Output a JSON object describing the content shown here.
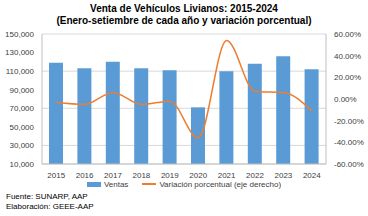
{
  "chart_data": {
    "type": "bar",
    "title": "Venta de Vehículos Livianos: 2015-2024",
    "subtitle": "(Enero-setiembre de cada año y variación porcentual)",
    "categories": [
      "2015",
      "2016",
      "2017",
      "2018",
      "2019",
      "2020",
      "2021",
      "2022",
      "2023",
      "2024"
    ],
    "series": [
      {
        "name": "Ventas",
        "type": "bar",
        "color": "#5b9bd5",
        "values": [
          119000,
          113000,
          120000,
          113000,
          111000,
          71000,
          110000,
          118000,
          126000,
          112000
        ]
      },
      {
        "name": "Variación porcentual (eje derecho)",
        "type": "line",
        "color": "#ed7d31",
        "axis": "y2",
        "values": [
          -3,
          -5,
          6,
          -5,
          -2,
          -36,
          54,
          7,
          6,
          -11
        ]
      }
    ],
    "ylim": [
      10000,
      150000
    ],
    "yticks": [
      {
        "value": 10000,
        "label": "10,000"
      },
      {
        "value": 30000,
        "label": "30,000"
      },
      {
        "value": 50000,
        "label": "50,000"
      },
      {
        "value": 70000,
        "label": "70,000"
      },
      {
        "value": 90000,
        "label": "90,000"
      },
      {
        "value": 110000,
        "label": "110,000"
      },
      {
        "value": 130000,
        "label": "130,000"
      },
      {
        "value": 150000,
        "label": "150,000"
      }
    ],
    "y2lim": [
      -60,
      60
    ],
    "y2ticks": [
      {
        "value": -60,
        "label": "-60.00%"
      },
      {
        "value": -40,
        "label": "-40.00%"
      },
      {
        "value": -20,
        "label": "-20.00%"
      },
      {
        "value": 0,
        "label": "0.00%"
      },
      {
        "value": 20,
        "label": "20.00%"
      },
      {
        "value": 40,
        "label": "40.00%"
      },
      {
        "value": 60,
        "label": "60.00%"
      }
    ],
    "grid": true,
    "legend": "bottom",
    "annotations": [
      "Fuente: SUNARP, AAP",
      "Elaboración: GEEE-AAP"
    ]
  }
}
